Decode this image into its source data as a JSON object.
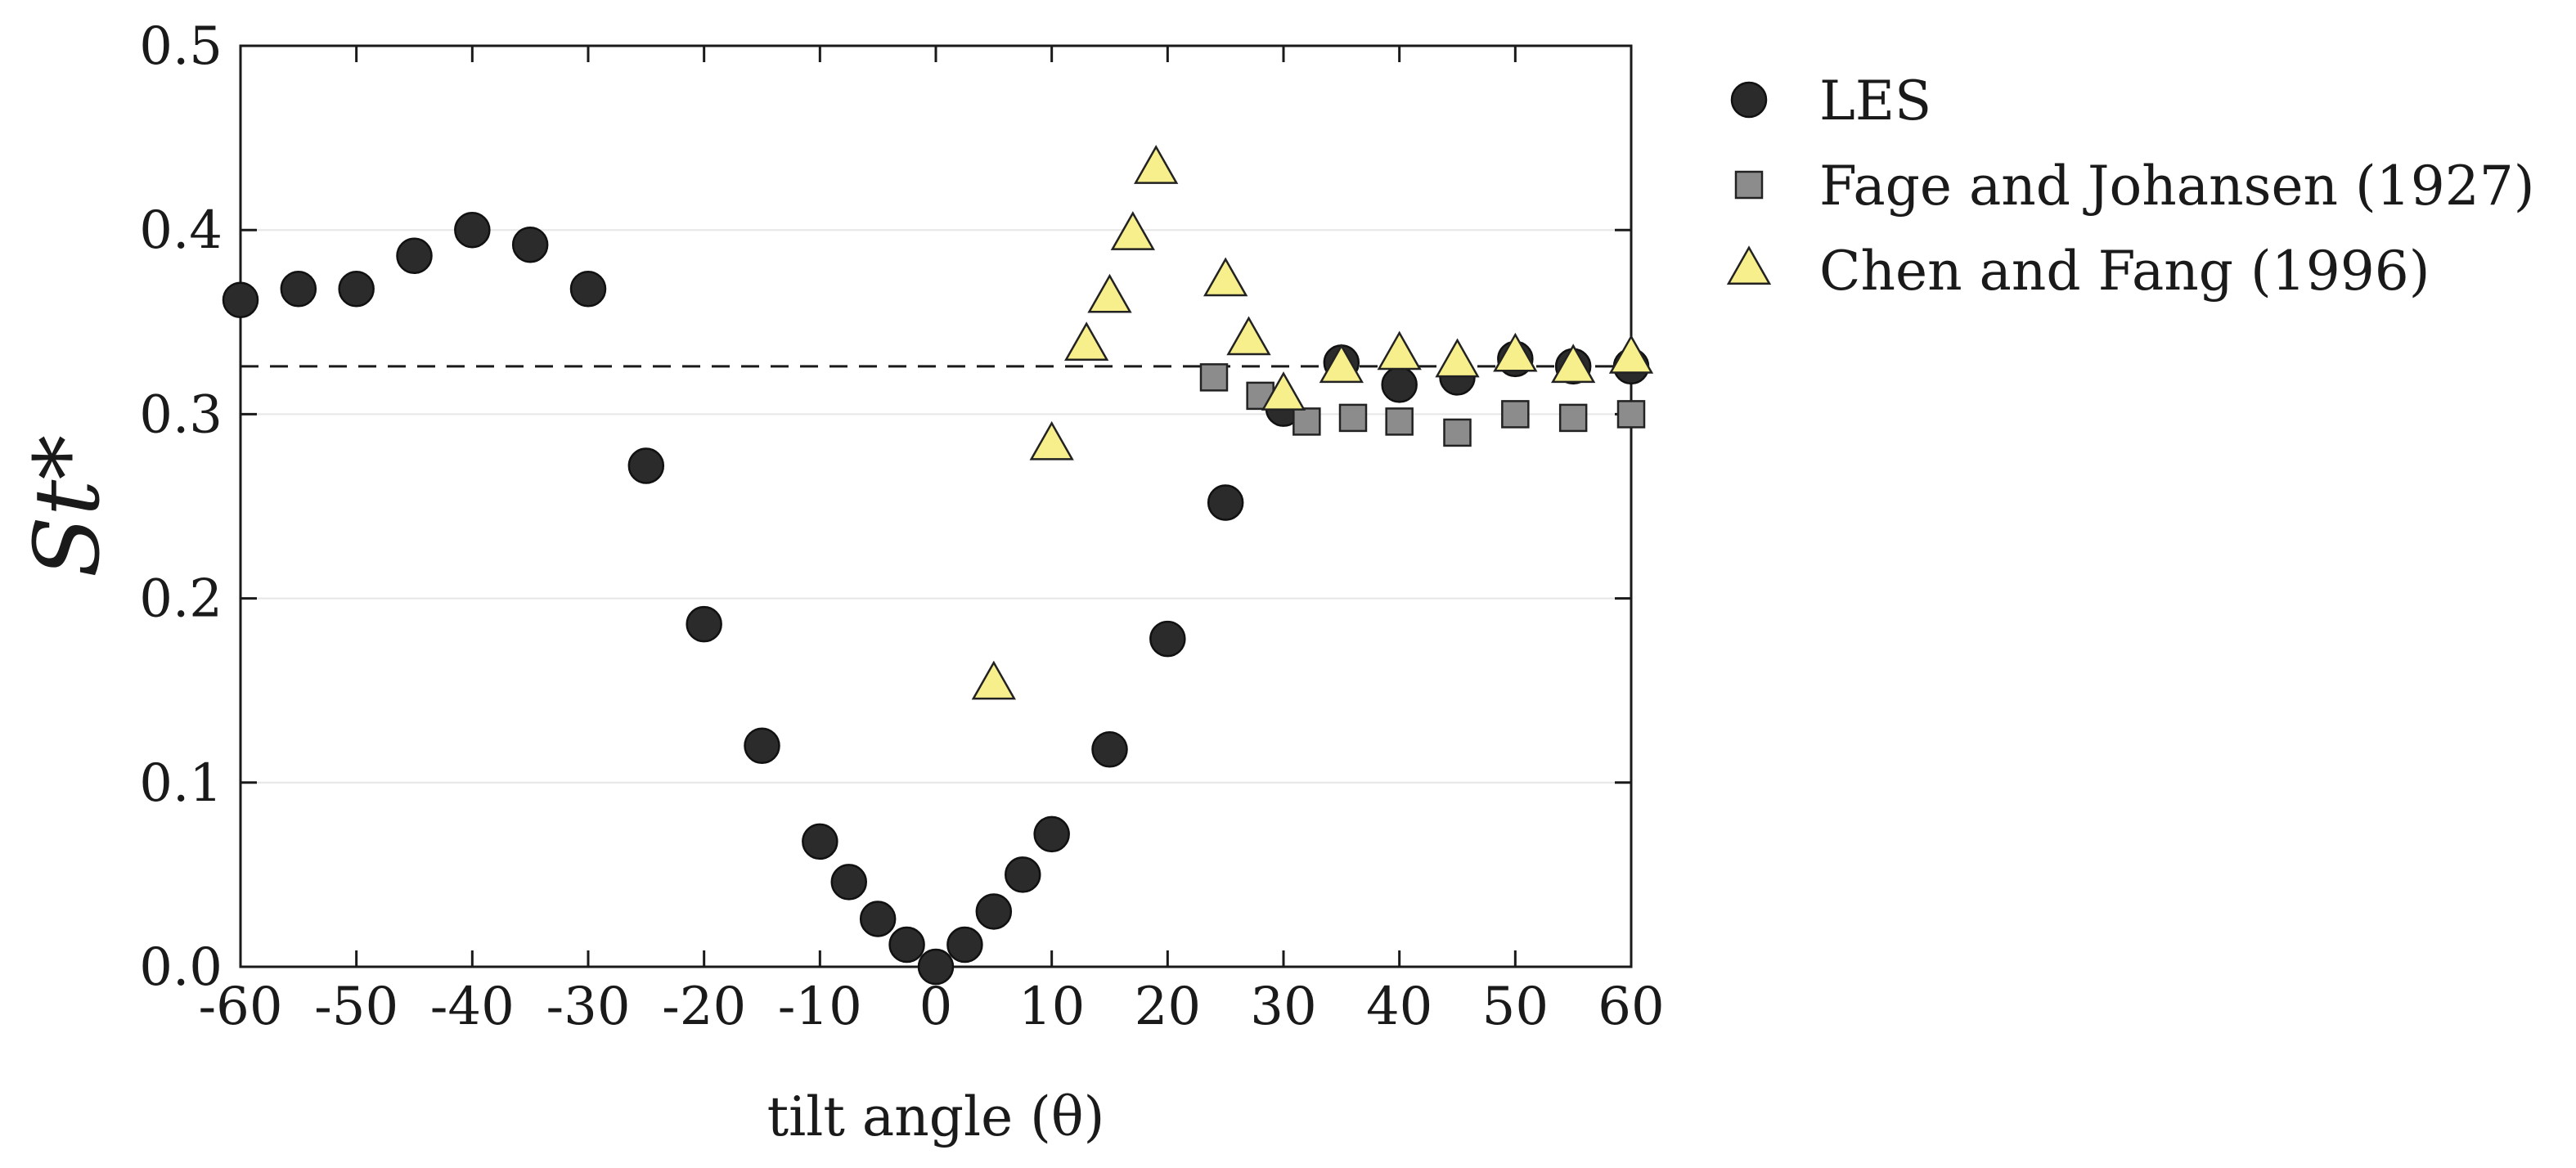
{
  "chart_data": {
    "type": "scatter",
    "xlabel": "tilt angle (θ)",
    "ylabel": "St*",
    "xlim": [
      -60,
      60
    ],
    "ylim": [
      0.0,
      0.5
    ],
    "x_ticks": [
      -60,
      -50,
      -40,
      -30,
      -20,
      -10,
      0,
      10,
      20,
      30,
      40,
      50,
      60
    ],
    "x_tick_labels": [
      "-60",
      "-50",
      "-40",
      "-30",
      "-20",
      "-10",
      "0",
      "10",
      "20",
      "30",
      "40",
      "50",
      "60"
    ],
    "y_ticks": [
      0.0,
      0.1,
      0.2,
      0.3,
      0.4,
      0.5
    ],
    "y_tick_labels": [
      "0.0",
      "0.1",
      "0.2",
      "0.3",
      "0.4",
      "0.5"
    ],
    "reference_line": {
      "y": 0.326,
      "style": "dashed"
    },
    "legend_position": "outside-top-right",
    "series": [
      {
        "name": "LES",
        "marker": "circle",
        "color": "#2b2b2b",
        "x": [
          -60,
          -55,
          -50,
          -45,
          -40,
          -35,
          -30,
          -25,
          -20,
          -15,
          -10,
          -7.5,
          -5,
          -2.5,
          0,
          2.5,
          5,
          7.5,
          10,
          15,
          20,
          25,
          30,
          35,
          40,
          45,
          50,
          55,
          60
        ],
        "y": [
          0.362,
          0.368,
          0.368,
          0.386,
          0.4,
          0.392,
          0.368,
          0.272,
          0.186,
          0.12,
          0.068,
          0.046,
          0.026,
          0.012,
          0.0,
          0.012,
          0.03,
          0.05,
          0.072,
          0.118,
          0.178,
          0.252,
          0.303,
          0.328,
          0.316,
          0.32,
          0.33,
          0.326,
          0.326
        ]
      },
      {
        "name": "Fage and Johansen (1927)",
        "marker": "square",
        "color": "#8c8c8c",
        "x": [
          24,
          28,
          32,
          36,
          40,
          45,
          50,
          55,
          60
        ],
        "y": [
          0.32,
          0.31,
          0.296,
          0.298,
          0.296,
          0.29,
          0.3,
          0.298,
          0.3
        ]
      },
      {
        "name": "Chen and Fang (1996)",
        "marker": "triangle",
        "color": "#f7ee8c",
        "x": [
          5,
          10,
          13,
          15,
          17,
          19,
          25,
          27,
          30,
          35,
          40,
          45,
          50,
          55,
          60
        ],
        "y": [
          0.153,
          0.283,
          0.337,
          0.363,
          0.397,
          0.433,
          0.372,
          0.34,
          0.31,
          0.325,
          0.332,
          0.328,
          0.331,
          0.325,
          0.33
        ]
      }
    ]
  }
}
